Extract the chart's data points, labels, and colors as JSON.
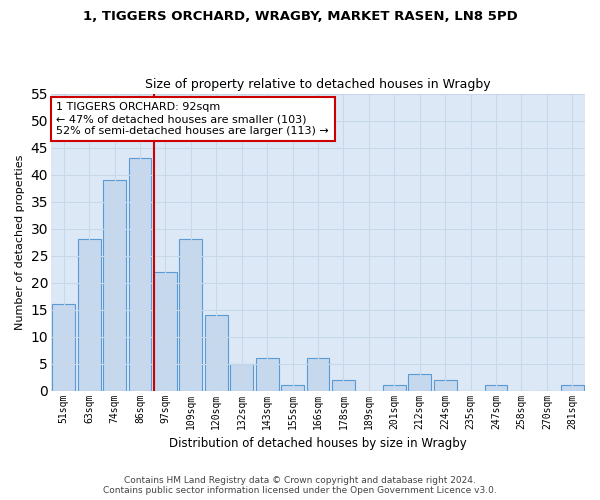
{
  "title1": "1, TIGGERS ORCHARD, WRAGBY, MARKET RASEN, LN8 5PD",
  "title2": "Size of property relative to detached houses in Wragby",
  "xlabel": "Distribution of detached houses by size in Wragby",
  "ylabel": "Number of detached properties",
  "categories": [
    "51sqm",
    "63sqm",
    "74sqm",
    "86sqm",
    "97sqm",
    "109sqm",
    "120sqm",
    "132sqm",
    "143sqm",
    "155sqm",
    "166sqm",
    "178sqm",
    "189sqm",
    "201sqm",
    "212sqm",
    "224sqm",
    "235sqm",
    "247sqm",
    "258sqm",
    "270sqm",
    "281sqm"
  ],
  "values": [
    16,
    28,
    39,
    43,
    22,
    28,
    14,
    5,
    6,
    1,
    6,
    2,
    0,
    1,
    3,
    2,
    0,
    1,
    0,
    0,
    1
  ],
  "bar_color": "#c5d8ed",
  "bar_edge_color": "#5b9bd5",
  "subject_line_color": "#cc0000",
  "annotation_line1": "1 TIGGERS ORCHARD: 92sqm",
  "annotation_line2": "← 47% of detached houses are smaller (103)",
  "annotation_line3": "52% of semi-detached houses are larger (113) →",
  "annotation_box_color": "#ffffff",
  "annotation_box_edge_color": "#cc0000",
  "ylim": [
    0,
    55
  ],
  "yticks": [
    0,
    5,
    10,
    15,
    20,
    25,
    30,
    35,
    40,
    45,
    50,
    55
  ],
  "grid_color": "#c8d8ea",
  "plot_bg_color": "#dce8f5",
  "background_color": "#ffffff",
  "footer1": "Contains HM Land Registry data © Crown copyright and database right 2024.",
  "footer2": "Contains public sector information licensed under the Open Government Licence v3.0."
}
